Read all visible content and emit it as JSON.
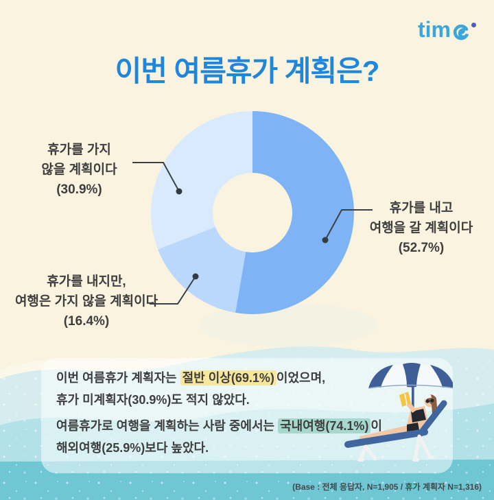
{
  "logo": {
    "text": "time",
    "prefix": "tim"
  },
  "title": "이번 여름휴가 계획은?",
  "chart_data": {
    "type": "pie",
    "donut": true,
    "title": "이번 여름휴가 계획은?",
    "start_angle_deg": 0,
    "direction": "clockwise",
    "legend_position": "callout-labels",
    "segments": [
      {
        "label": "휴가를 내고 여행을 갈 계획이다",
        "value": 52.7,
        "color": "#7EB4F5"
      },
      {
        "label": "휴가를 내지만, 여행은 가지 않을 계획이다",
        "value": 16.4,
        "color": "#B9D8FB"
      },
      {
        "label": "휴가를 가지 않을 계획이다",
        "value": 30.9,
        "color": "#D9EAFE"
      }
    ]
  },
  "callouts": {
    "not_taking": {
      "line1": "휴가를 가지",
      "line2": "않을 계획이다",
      "pct": "(30.9%)"
    },
    "travel": {
      "line1": "휴가를 내고",
      "line2": "여행을 갈 계획이다",
      "pct": "(52.7%)"
    },
    "no_travel": {
      "line1": "휴가를 내지만,",
      "line2": "여행은 가지 않을 계획이다",
      "pct": "(16.4%)"
    }
  },
  "summary": {
    "highlight_colors": {
      "yellow": "#F7E79D",
      "mint": "#A6D8CB"
    },
    "lines": [
      {
        "new_paragraph": false,
        "segments": [
          {
            "text": "이번 여름휴가 계획자는 "
          },
          {
            "text": "절반 이상(69.1%)",
            "highlight": "yellow"
          },
          {
            "text": "이었으며,"
          }
        ]
      },
      {
        "new_paragraph": false,
        "segments": [
          {
            "text": "휴가 미계획자(30.9%)도 적지 않았다."
          }
        ]
      },
      {
        "new_paragraph": true,
        "segments": [
          {
            "text": "여름휴가로 여행을 계획하는 사람 중에서는 "
          },
          {
            "text": "국내여행(74.1%)",
            "highlight": "mint"
          },
          {
            "text": "이"
          }
        ]
      },
      {
        "new_paragraph": false,
        "segments": [
          {
            "text": "해외여행(25.9%)보다 높았다."
          }
        ]
      }
    ]
  },
  "base_note": "(Base :  전체 응답자, N=1,905 / 휴가 계획자 N=1,316)",
  "colors": {
    "background_cream": "#FAF3DF",
    "title_blue": "#1E86DB",
    "logo_blue": "#3AA7DC",
    "logo_dot_indigo": "#4A5EC0",
    "text_dark": "#3E3E3E",
    "leader_line": "#3A4046",
    "wave_pale": "#FBF7E9",
    "wave_light_teal": "#D5EDEE",
    "wave_mid_teal": "#B2E1E7",
    "wave_deep_teal": "#6FC7D4",
    "umbrella_navy": "#3E5E97",
    "card_white": "rgba(255,255,255,0.52)"
  }
}
